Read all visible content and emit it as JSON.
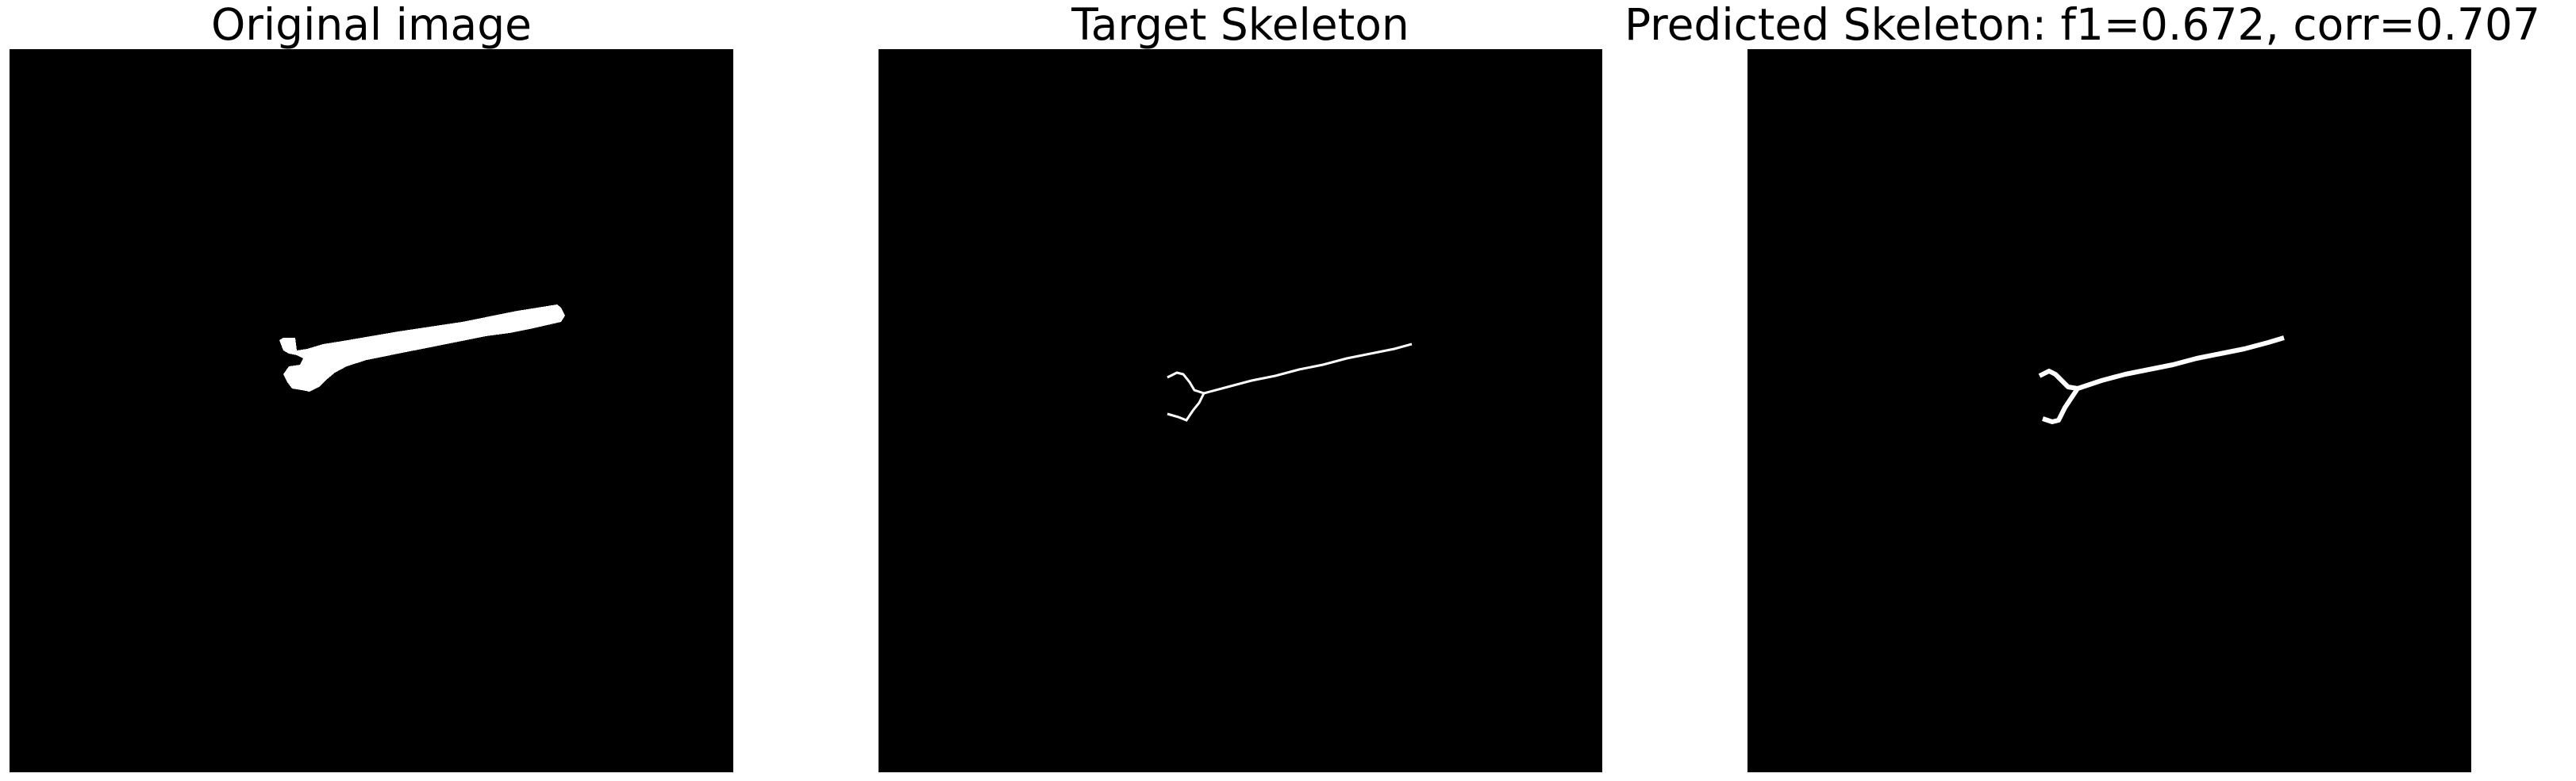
{
  "panels": [
    {
      "title": "Original image"
    },
    {
      "title": "Target Skeleton"
    },
    {
      "title": "Predicted Skeleton: f1=0.672, corr=0.707"
    }
  ],
  "colors": {
    "background": "#000000",
    "foreground": "#ffffff",
    "page": "#ffffff",
    "text": "#000000"
  }
}
